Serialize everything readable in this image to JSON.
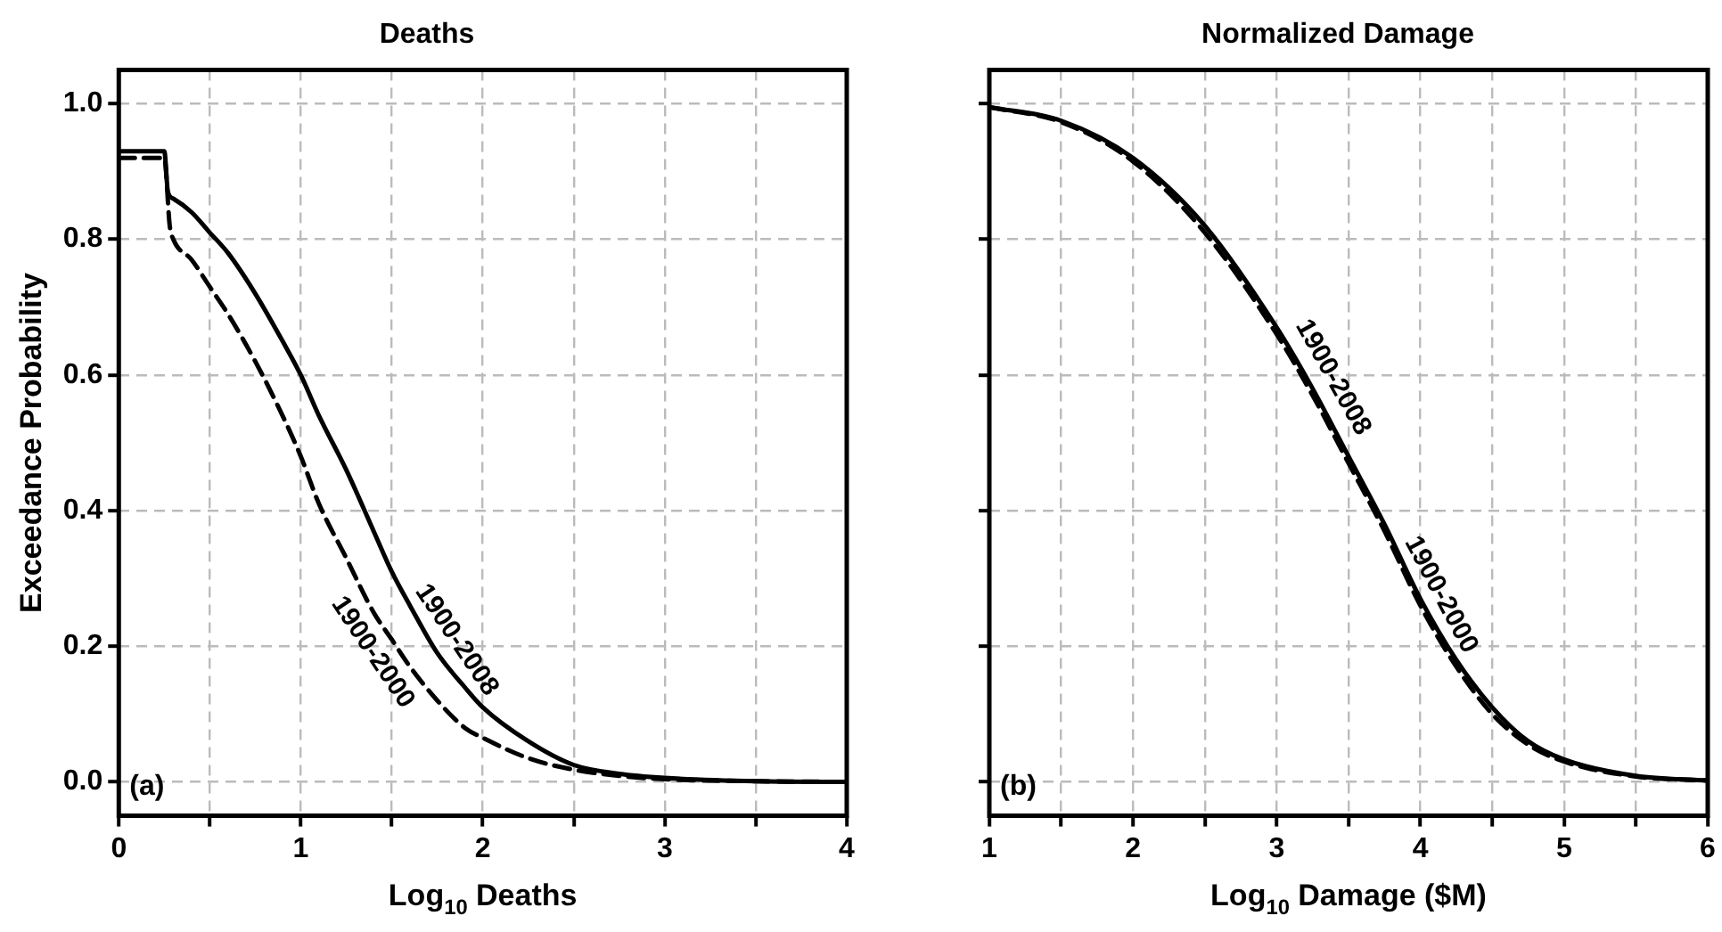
{
  "chart_data": [
    {
      "type": "line",
      "title": "Deaths",
      "xlabel": "Log$_{10}$ Deaths",
      "ylabel": "Exceedance Probability",
      "xlim": [
        0,
        4
      ],
      "ylim": [
        -0.05,
        1.05
      ],
      "xticks": [
        0,
        {
          "value": 0.5,
          "label": null
        },
        1,
        {
          "value": 1.5,
          "label": null
        },
        2,
        {
          "value": 2.5,
          "label": null
        },
        3,
        {
          "value": 3.5,
          "label": null
        },
        4
      ],
      "yticks": [
        {
          "value": 0,
          "label": "0.0"
        },
        0.2,
        0.4,
        0.6,
        0.8,
        {
          "value": 1,
          "label": "1.0"
        }
      ],
      "grid": true,
      "legend": false,
      "marker": "none",
      "annotations": [
        "(a)"
      ],
      "series": [
        {
          "name": "1900-2008",
          "color": "#000000",
          "line_style": "solid",
          "x": [
            0,
            0.25,
            0.27,
            0.3,
            0.4,
            0.5,
            0.6,
            0.75,
            0.9,
            1.0,
            1.1,
            1.25,
            1.4,
            1.5,
            1.6,
            1.75,
            1.9,
            2.0,
            2.25,
            2.5,
            2.75,
            3.0,
            3.5,
            4.0
          ],
          "values": [
            0.93,
            0.93,
            0.87,
            0.86,
            0.84,
            0.81,
            0.78,
            0.72,
            0.65,
            0.6,
            0.54,
            0.46,
            0.37,
            0.31,
            0.26,
            0.19,
            0.14,
            0.11,
            0.06,
            0.025,
            0.012,
            0.006,
            0.001,
            0
          ]
        },
        {
          "name": "1900-2000",
          "color": "#000000",
          "line_style": "dashed",
          "x": [
            0,
            0.25,
            0.28,
            0.3,
            0.4,
            0.5,
            0.6,
            0.75,
            0.9,
            1.0,
            1.1,
            1.25,
            1.4,
            1.5,
            1.6,
            1.75,
            1.9,
            2.0,
            2.25,
            2.5,
            2.75,
            3.0,
            3.5,
            4.0
          ],
          "values": [
            0.92,
            0.92,
            0.82,
            0.8,
            0.77,
            0.73,
            0.69,
            0.62,
            0.54,
            0.48,
            0.41,
            0.33,
            0.25,
            0.21,
            0.17,
            0.12,
            0.08,
            0.065,
            0.035,
            0.018,
            0.009,
            0.004,
            0.001,
            0
          ]
        }
      ]
    },
    {
      "type": "line",
      "title": "Normalized Damage",
      "xlabel": "Log$_{10}$ Damage ($M)",
      "xlim": [
        1,
        6
      ],
      "ylim": [
        -0.05,
        1.05
      ],
      "xticks": [
        1,
        {
          "value": 1.5,
          "label": null
        },
        2,
        {
          "value": 2.5,
          "label": null
        },
        3,
        {
          "value": 3.5,
          "label": null
        },
        4,
        {
          "value": 4.5,
          "label": null
        },
        5,
        {
          "value": 5.5,
          "label": null
        },
        6
      ],
      "yticks": [
        0,
        0.2,
        0.4,
        0.6,
        0.8,
        1
      ],
      "tick_labels": "x",
      "grid": true,
      "legend": false,
      "marker": "none",
      "annotations": [
        "(b)"
      ],
      "series": [
        {
          "name": "1900-2008",
          "color": "#000000",
          "line_style": "solid",
          "x": [
            1,
            1.5,
            2,
            2.5,
            3,
            3.25,
            3.5,
            3.75,
            4,
            4.25,
            4.5,
            4.75,
            5,
            5.5,
            6
          ],
          "values": [
            0.995,
            0.975,
            0.92,
            0.82,
            0.67,
            0.58,
            0.48,
            0.38,
            0.27,
            0.18,
            0.11,
            0.06,
            0.033,
            0.009,
            0.002
          ]
        },
        {
          "name": "1900-2000",
          "color": "#000000",
          "line_style": "dashed",
          "x": [
            1,
            1.5,
            2,
            2.5,
            3,
            3.25,
            3.5,
            3.75,
            4,
            4.25,
            4.5,
            4.75,
            5,
            5.5,
            6
          ],
          "values": [
            0.995,
            0.973,
            0.915,
            0.81,
            0.66,
            0.57,
            0.47,
            0.37,
            0.26,
            0.17,
            0.1,
            0.055,
            0.03,
            0.008,
            0.002
          ]
        }
      ]
    }
  ]
}
